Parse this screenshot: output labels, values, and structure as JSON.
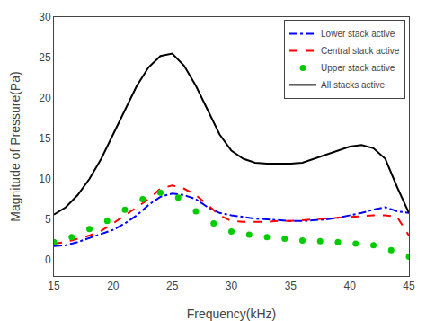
{
  "chart_data": {
    "type": "line",
    "title": "",
    "xlabel": "Frequency(kHz)",
    "ylabel": "Magnitude of Pressure(Pa)",
    "xlim": [
      15,
      45
    ],
    "ylim": [
      -2,
      30
    ],
    "xticks": [
      15,
      20,
      25,
      30,
      35,
      40,
      45
    ],
    "yticks": [
      0,
      5,
      10,
      15,
      20,
      25,
      30
    ],
    "grid": false,
    "legend": "upper right",
    "series": [
      {
        "name": "Lower stack active",
        "color": "#0000FF",
        "line_style": "dashdot",
        "x": [
          15,
          16,
          17,
          18,
          19,
          20,
          21,
          22,
          23,
          24,
          25,
          26,
          27,
          28,
          29,
          30,
          31,
          32,
          33,
          34,
          35,
          36,
          37,
          38,
          39,
          40,
          41,
          42,
          43,
          44,
          45
        ],
        "values": [
          1.7,
          1.8,
          2.2,
          2.7,
          3.2,
          3.7,
          4.5,
          5.5,
          6.8,
          7.8,
          8.2,
          8.0,
          7.5,
          6.5,
          5.8,
          5.5,
          5.3,
          5.1,
          5.0,
          4.9,
          4.8,
          4.8,
          4.9,
          5.0,
          5.2,
          5.5,
          5.8,
          6.2,
          6.5,
          6.0,
          5.8
        ]
      },
      {
        "name": "Central stack active",
        "color": "#FF0000",
        "line_style": "dash",
        "x": [
          15,
          16,
          17,
          18,
          19,
          20,
          21,
          22,
          23,
          24,
          25,
          26,
          27,
          28,
          29,
          30,
          31,
          32,
          33,
          34,
          35,
          36,
          37,
          38,
          39,
          40,
          41,
          42,
          43,
          44,
          45
        ],
        "values": [
          2.0,
          2.2,
          2.6,
          3.0,
          3.6,
          4.5,
          5.5,
          6.5,
          7.5,
          8.8,
          9.2,
          8.8,
          8.0,
          6.8,
          5.5,
          4.8,
          4.7,
          4.7,
          4.7,
          4.8,
          4.8,
          4.9,
          5.0,
          5.1,
          5.2,
          5.3,
          5.4,
          5.5,
          5.5,
          5.3,
          3.0
        ]
      },
      {
        "name": "Upper stack active",
        "color": "#00CC00",
        "line_style": "none",
        "marker": "circle",
        "x": [
          15,
          16.5,
          18,
          19.5,
          21,
          22.5,
          24,
          25.5,
          27,
          28.5,
          30,
          31.5,
          33,
          34.5,
          36,
          37.5,
          39,
          40.5,
          42,
          43.5,
          45
        ],
        "values": [
          2.2,
          2.8,
          3.8,
          4.8,
          6.2,
          7.5,
          8.3,
          7.7,
          6.0,
          4.5,
          3.5,
          3.1,
          2.8,
          2.6,
          2.4,
          2.3,
          2.2,
          2.0,
          1.8,
          1.2,
          0.4
        ]
      },
      {
        "name": "All stacks active",
        "color": "#000000",
        "line_style": "solid",
        "x": [
          15,
          16,
          17,
          18,
          19,
          20,
          21,
          22,
          23,
          24,
          25,
          26,
          27,
          28,
          29,
          30,
          31,
          32,
          33,
          34,
          35,
          36,
          37,
          38,
          39,
          40,
          41,
          42,
          43,
          44,
          45
        ],
        "values": [
          5.6,
          6.5,
          8.0,
          10.0,
          12.5,
          15.5,
          18.5,
          21.5,
          23.8,
          25.2,
          25.5,
          24.0,
          21.5,
          18.5,
          15.5,
          13.5,
          12.5,
          12.0,
          11.9,
          11.9,
          11.9,
          12.0,
          12.5,
          13.0,
          13.5,
          14.0,
          14.2,
          13.8,
          12.5,
          9.0,
          5.8
        ]
      }
    ]
  }
}
